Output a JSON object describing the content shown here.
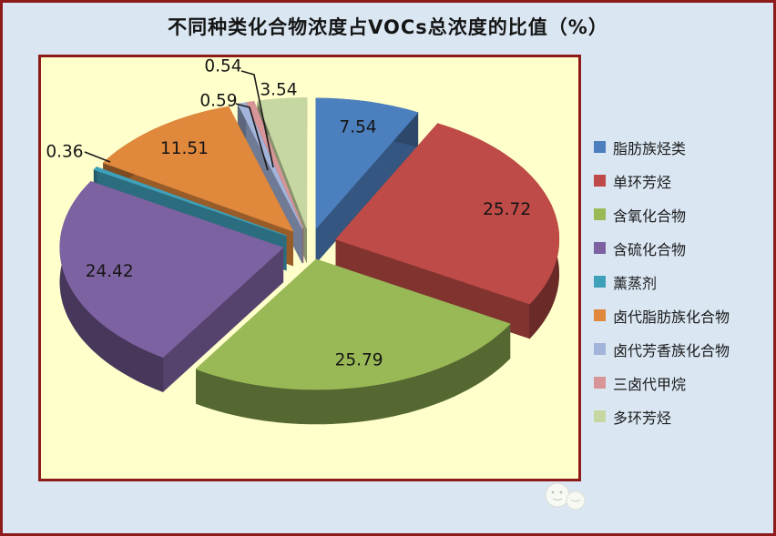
{
  "title": "不同种类化合物浓度占VOCs总浓度的比值（%）",
  "colors": {
    "background": "#DAE7F3",
    "panel_background": "#FFFFCC",
    "border_red": "#8E1B1B",
    "label_text": "#151515"
  },
  "chart_data": {
    "type": "pie",
    "style": "3d-exploded",
    "title": "不同种类化合物浓度占VOCs总浓度的比值（%）",
    "unit": "%",
    "legend_position": "right",
    "grid": false,
    "categories": [
      "脂肪族烃类",
      "单环芳烃",
      "含氧化合物",
      "含硫化合物",
      "薰蒸剂",
      "卤代脂肪族化合物",
      "卤代芳香族化合物",
      "三卤代甲烷",
      "多环芳烃"
    ],
    "values": [
      7.54,
      25.72,
      25.79,
      24.42,
      0.36,
      11.51,
      0.59,
      0.54,
      3.54
    ],
    "data_labels": [
      "7.54",
      "25.72",
      "25.79",
      "24.42",
      "0.36",
      "11.51",
      "0.59",
      "0.54",
      "3.54"
    ],
    "colors": [
      "#4C7FBE",
      "#BE4B47",
      "#99B957",
      "#7D62A2",
      "#3FA0B9",
      "#E0883C",
      "#A3B4DB",
      "#D79598",
      "#C7D7A2"
    ]
  }
}
